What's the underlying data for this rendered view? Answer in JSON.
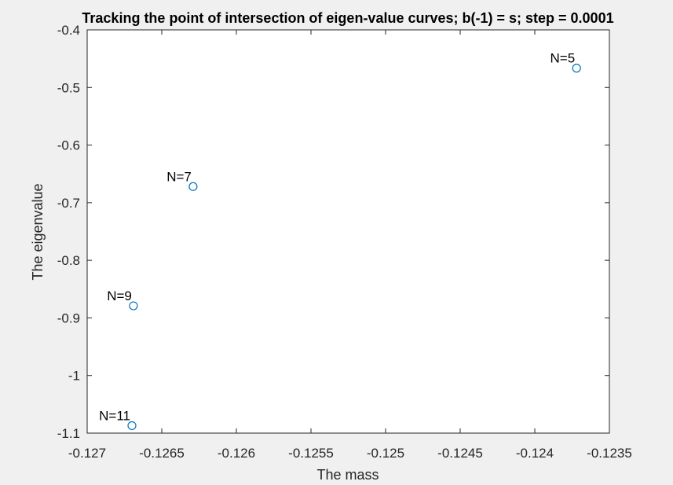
{
  "chart_data": {
    "type": "scatter",
    "title": "Tracking the point of intersection of eigen-value curves; b(-1) = s; step = 0.0001",
    "xlabel": "The mass",
    "ylabel": "The eigenvalue",
    "xlim": [
      -0.127,
      -0.1235
    ],
    "ylim": [
      -1.1,
      -0.4
    ],
    "xticks": [
      -0.127,
      -0.1265,
      -0.126,
      -0.1255,
      -0.125,
      -0.1245,
      -0.124,
      -0.1235
    ],
    "xtick_labels": [
      "-0.127",
      "-0.1265",
      "-0.126",
      "-0.1255",
      "-0.125",
      "-0.1245",
      "-0.124",
      "-0.1235"
    ],
    "yticks": [
      -1.1,
      -1.0,
      -0.9,
      -0.8,
      -0.7,
      -0.6,
      -0.5,
      -0.4
    ],
    "ytick_labels": [
      "-1.1",
      "-1",
      "-0.9",
      "-0.8",
      "-0.7",
      "-0.6",
      "-0.5",
      "-0.4"
    ],
    "grid": false,
    "marker": "circle",
    "marker_color": "#0072bd",
    "points": [
      {
        "x": -0.12372,
        "y": -0.4665,
        "label": "N=5"
      },
      {
        "x": -0.12629,
        "y": -0.672,
        "label": "N=7"
      },
      {
        "x": -0.12669,
        "y": -0.879,
        "label": "N=9"
      },
      {
        "x": -0.1267,
        "y": -1.087,
        "label": "N=11"
      }
    ]
  }
}
